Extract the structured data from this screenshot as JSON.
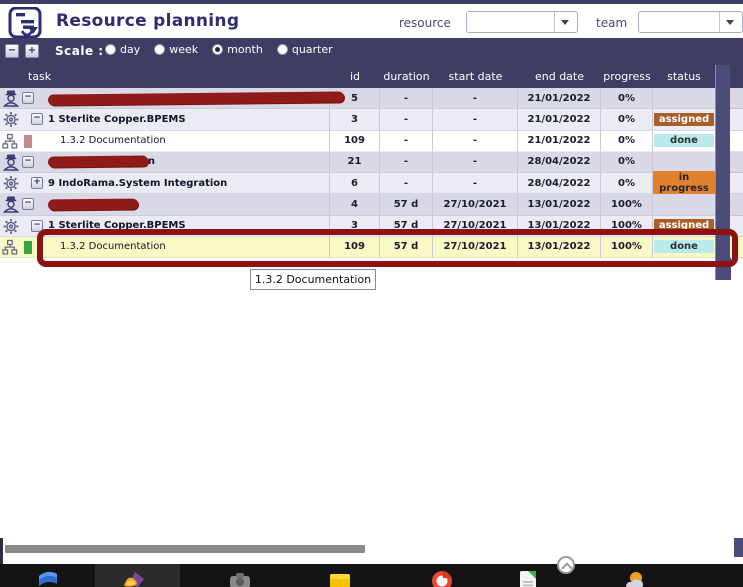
{
  "header": {
    "title": "Resource planning",
    "resource_label": "resource",
    "resource_value": "",
    "team_label": "team",
    "team_value": ""
  },
  "toolbar": {
    "zoom_out_label": "−",
    "zoom_in_label": "+",
    "scale_label": "Scale :",
    "scale_options": [
      {
        "label": "day",
        "selected": false
      },
      {
        "label": "week",
        "selected": false
      },
      {
        "label": "month",
        "selected": true
      },
      {
        "label": "quarter",
        "selected": false
      }
    ]
  },
  "table": {
    "columns": [
      "task",
      "id",
      "duration",
      "start date",
      "end date",
      "progress",
      "status"
    ],
    "status_colors": {
      "assigned": {
        "bg": "#a95f2a",
        "fg": "#ffffff"
      },
      "done": {
        "bg": "#b9ebec",
        "fg": "#303030"
      },
      "in progress": {
        "bg": "#e0812d",
        "fg": "#26262e"
      }
    },
    "rows": [
      {
        "type": "resource",
        "expander": "-",
        "task": "",
        "redacted": true,
        "redaction_width": 296,
        "id": "5",
        "duration": "-",
        "start_date": "-",
        "end_date": "21/01/2022",
        "progress": "0%",
        "status": ""
      },
      {
        "type": "project",
        "expander": "-",
        "task": "1 Sterlite Copper.BPEMS",
        "id": "3",
        "duration": "-",
        "start_date": "-",
        "end_date": "21/01/2022",
        "progress": "0%",
        "status": "assigned"
      },
      {
        "type": "task",
        "task": "1.3.2 Documentation",
        "chip_color": "#c18a90",
        "id": "109",
        "duration": "-",
        "start_date": "-",
        "end_date": "21/01/2022",
        "progress": "0%",
        "status": "done"
      },
      {
        "type": "resource",
        "expander": "-",
        "task": "",
        "redacted": true,
        "redaction_width": 100,
        "visible_fragment": "dan",
        "id": "21",
        "duration": "-",
        "start_date": "-",
        "end_date": "28/04/2022",
        "progress": "0%",
        "status": ""
      },
      {
        "type": "project",
        "expander": "+",
        "task": "9 IndoRama.System Integration",
        "id": "6",
        "duration": "-",
        "start_date": "-",
        "end_date": "28/04/2022",
        "progress": "0%",
        "status": "in progress"
      },
      {
        "type": "resource",
        "expander": "-",
        "task": "",
        "redacted": true,
        "redaction_width": 90,
        "id": "4",
        "duration": "57 d",
        "start_date": "27/10/2021",
        "end_date": "13/01/2022",
        "progress": "100%",
        "status": ""
      },
      {
        "type": "project",
        "expander": "-",
        "task": "1 Sterlite Copper.BPEMS",
        "id": "3",
        "duration": "57 d",
        "start_date": "27/10/2021",
        "end_date": "13/01/2022",
        "progress": "100%",
        "status": "assigned"
      },
      {
        "type": "task",
        "task": "1.3.2 Documentation",
        "chip_color": "#35a73c",
        "id": "109",
        "duration": "57 d",
        "start_date": "27/10/2021",
        "end_date": "13/01/2022",
        "progress": "100%",
        "status": "done",
        "highlighted": true,
        "annotated": true
      }
    ]
  },
  "tooltip": {
    "text": "1.3.2 Documentation"
  },
  "annotation": {
    "color": "#8e1212"
  },
  "taskbar": {
    "icons": [
      {
        "name": "blue-app-icon",
        "color": "#2b6fd4",
        "active": false
      },
      {
        "name": "active-colorful-app-icon",
        "color": "#f5a623",
        "active": true
      },
      {
        "name": "gray-app-icon",
        "color": "#8a8a8a",
        "active": false
      },
      {
        "name": "yellow-app-icon",
        "color": "#f5c400",
        "active": false
      },
      {
        "name": "red-browser-icon",
        "color": "#e8492f",
        "active": false
      },
      {
        "name": "green-document-icon",
        "color": "#3fae49",
        "active": false
      },
      {
        "name": "weather-icon",
        "color": "#f0a020",
        "active": false
      }
    ]
  }
}
